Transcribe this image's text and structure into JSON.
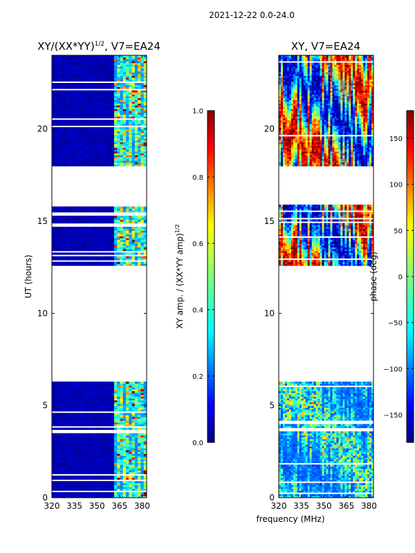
{
  "suptitle": "2021-12-22 0.0-24.0",
  "shared_xlabel": "frequency (MHz)",
  "chart_data": [
    {
      "type": "heatmap",
      "title": "XY/(XX*YY)",
      "title_exp": "1/2",
      "title_suffix": ", V7=EA24",
      "xlabel": "frequency (MHz)",
      "ylabel": "UT (hours)",
      "xlim": [
        320,
        383
      ],
      "ylim": [
        0,
        24
      ],
      "xticks": [
        320,
        335,
        350,
        365,
        380
      ],
      "yticks": [
        0,
        5,
        10,
        15,
        20
      ],
      "data_gaps_hours": [
        [
          6.3,
          12.6
        ],
        [
          15.9,
          18.0
        ]
      ],
      "colorbar": {
        "label": "XY amp. / (XX*YY amp)",
        "label_exp": "1/2",
        "range": [
          0.0,
          1.0
        ],
        "ticks": [
          "0.0",
          "0.2",
          "0.4",
          "0.6",
          "0.8",
          "1.0"
        ],
        "colormap": "jet"
      }
    },
    {
      "type": "heatmap",
      "title": "XY, V7=EA24",
      "xlabel": "frequency (MHz)",
      "ylabel": "",
      "xlim": [
        320,
        383
      ],
      "ylim": [
        0,
        24
      ],
      "xticks": [
        320,
        335,
        350,
        365,
        380
      ],
      "yticks": [
        0,
        5,
        10,
        15,
        20
      ],
      "data_gaps_hours": [
        [
          6.3,
          12.6
        ],
        [
          15.9,
          18.0
        ]
      ],
      "colorbar": {
        "label": "phase (deg)",
        "range": [
          -180,
          180
        ],
        "ticks": [
          "−150",
          "−100",
          "−50",
          "0",
          "50",
          "100",
          "150"
        ],
        "tick_values": [
          -150,
          -100,
          -50,
          0,
          50,
          100,
          150
        ],
        "colormap": "jet"
      }
    }
  ],
  "colors": {
    "jet_stops": [
      "#00007f",
      "#0000ff",
      "#007fff",
      "#00ffff",
      "#7fff7f",
      "#ffff00",
      "#ff7f00",
      "#ff0000",
      "#7f0000"
    ],
    "frame": "#000000",
    "background": "#ffffff"
  }
}
